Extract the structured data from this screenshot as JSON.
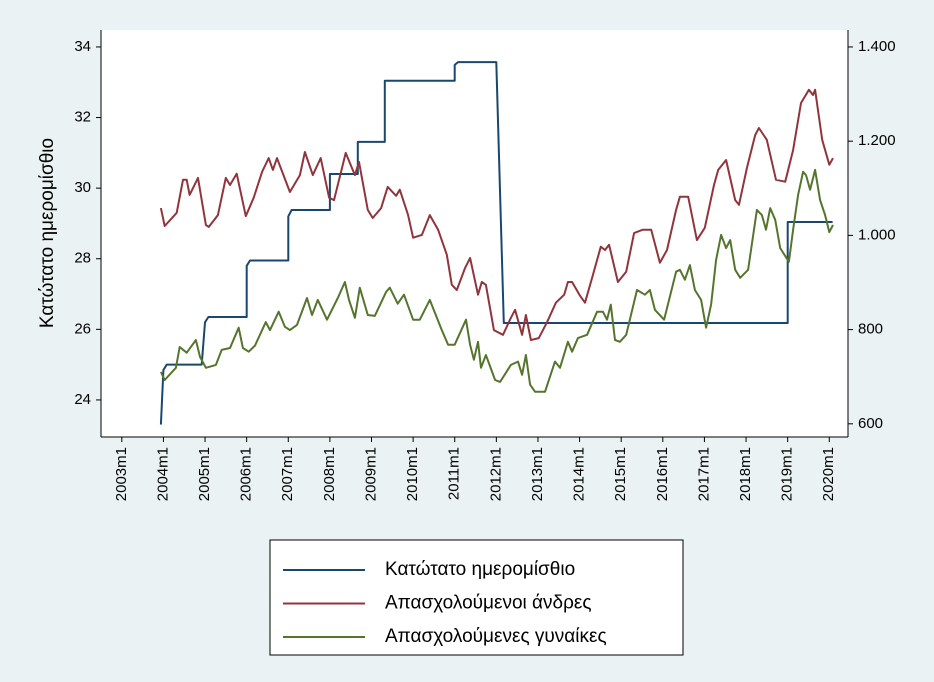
{
  "chart_data": {
    "type": "line",
    "ylabel": "Κατώτατο ημερομίσθιο",
    "xlim": [
      2002.5,
      2020.45
    ],
    "xticks": [
      {
        "value": 2003,
        "label": "2003m1"
      },
      {
        "value": 2004,
        "label": "2004m1"
      },
      {
        "value": 2005,
        "label": "2005m1"
      },
      {
        "value": 2006,
        "label": "2006m1"
      },
      {
        "value": 2007,
        "label": "2007m1"
      },
      {
        "value": 2008,
        "label": "2008m1"
      },
      {
        "value": 2009,
        "label": "2009m1"
      },
      {
        "value": 2010,
        "label": "2010m1"
      },
      {
        "value": 2011,
        "label": "2011m1"
      },
      {
        "value": 2012,
        "label": "2012m1"
      },
      {
        "value": 2013,
        "label": "2013m1"
      },
      {
        "value": 2014,
        "label": "2014m1"
      },
      {
        "value": 2015,
        "label": "2015m1"
      },
      {
        "value": 2016,
        "label": "2016m1"
      },
      {
        "value": 2017,
        "label": "2017m1"
      },
      {
        "value": 2018,
        "label": "2018m1"
      },
      {
        "value": 2019,
        "label": "2019m1"
      },
      {
        "value": 2020,
        "label": "2020m1"
      }
    ],
    "ylim": [
      22.95,
      34.48
    ],
    "yticks": [
      24,
      26,
      28,
      30,
      32,
      34
    ],
    "y2lim": [
      572,
      1436
    ],
    "y2ticks": [
      600,
      800,
      {
        "value": 1000,
        "label": "1.000"
      },
      {
        "value": 1200,
        "label": "1.200"
      },
      {
        "value": 1400,
        "label": "1.400"
      }
    ],
    "legend": "bottom",
    "series": [
      {
        "name": "Κατώτατο ημερομίσθιο",
        "color": "#1a476f",
        "x": [
          2003.94,
          2004.0,
          2004.08,
          2004.92,
          2005.0,
          2005.08,
          2006.0,
          2006.0,
          2006.08,
          2007.0,
          2007.0,
          2007.08,
          2008.0,
          2008.0,
          2008.67,
          2008.67,
          2009.32,
          2009.32,
          2011.0,
          2011.0,
          2011.08,
          2012.0,
          2012.18,
          2019.0,
          2019.0,
          2020.08
        ],
        "values": [
          23.3,
          24.85,
          25.0,
          25.0,
          26.2,
          26.35,
          26.35,
          27.8,
          27.95,
          27.95,
          29.2,
          29.38,
          29.38,
          30.4,
          30.4,
          31.31,
          31.31,
          33.04,
          33.04,
          33.49,
          33.57,
          33.57,
          26.18,
          26.18,
          29.04,
          29.04
        ]
      },
      {
        "name": "Απασχολούμενοι άνδρες",
        "color": "#90353b",
        "axis": "y2",
        "x": [
          2003.94,
          2004.03,
          2004.32,
          2004.47,
          2004.56,
          2004.63,
          2004.83,
          2005.02,
          2005.09,
          2005.31,
          2005.5,
          2005.6,
          2005.76,
          2005.98,
          2006.17,
          2006.37,
          2006.53,
          2006.63,
          2006.73,
          2007.04,
          2007.28,
          2007.4,
          2007.59,
          2007.78,
          2007.98,
          2008.1,
          2008.29,
          2008.38,
          2008.6,
          2008.7,
          2008.91,
          2009.03,
          2009.23,
          2009.39,
          2009.59,
          2009.68,
          2009.88,
          2010.0,
          2010.21,
          2010.4,
          2010.6,
          2010.81,
          2010.93,
          2011.05,
          2011.25,
          2011.37,
          2011.56,
          2011.65,
          2011.75,
          2011.94,
          2012.16,
          2012.35,
          2012.45,
          2012.62,
          2012.71,
          2012.83,
          2013.02,
          2013.22,
          2013.43,
          2013.63,
          2013.72,
          2013.82,
          2014.01,
          2014.13,
          2014.32,
          2014.51,
          2014.61,
          2014.71,
          2014.92,
          2015.12,
          2015.31,
          2015.52,
          2015.72,
          2015.93,
          2016.1,
          2016.32,
          2016.41,
          2016.61,
          2016.82,
          2017.01,
          2017.23,
          2017.33,
          2017.52,
          2017.74,
          2017.83,
          2018.02,
          2018.22,
          2018.31,
          2018.5,
          2018.72,
          2018.94,
          2019.13,
          2019.32,
          2019.51,
          2019.61,
          2019.66,
          2019.83,
          2020.0,
          2020.09
        ],
        "values": [
          1058,
          1020,
          1048,
          1118,
          1118,
          1086,
          1122,
          1022,
          1018,
          1043,
          1122,
          1107,
          1131,
          1041,
          1080,
          1135,
          1164,
          1139,
          1164,
          1092,
          1128,
          1177,
          1128,
          1164,
          1080,
          1075,
          1143,
          1175,
          1128,
          1156,
          1054,
          1037,
          1058,
          1103,
          1084,
          1097,
          1043,
          995,
          1001,
          1043,
          1012,
          959,
          895,
          884,
          931,
          952,
          874,
          901,
          895,
          799,
          789,
          825,
          842,
          789,
          831,
          778,
          782,
          816,
          857,
          874,
          901,
          901,
          872,
          857,
          916,
          976,
          969,
          980,
          901,
          923,
          1005,
          1012,
          1012,
          942,
          969,
          1054,
          1082,
          1082,
          990,
          1016,
          1107,
          1139,
          1160,
          1075,
          1065,
          1143,
          1213,
          1228,
          1203,
          1118,
          1114,
          1181,
          1281,
          1309,
          1298,
          1309,
          1203,
          1150,
          1164
        ]
      },
      {
        "name": "Απασχολούμενες γυναίκες",
        "color": "#55752f",
        "axis": "y2",
        "x": [
          2003.94,
          2004.03,
          2004.3,
          2004.39,
          2004.56,
          2004.78,
          2004.88,
          2005.02,
          2005.26,
          2005.4,
          2005.6,
          2005.81,
          2005.91,
          2006.05,
          2006.2,
          2006.46,
          2006.56,
          2006.77,
          2006.92,
          2007.04,
          2007.21,
          2007.45,
          2007.57,
          2007.71,
          2007.93,
          2008.19,
          2008.36,
          2008.46,
          2008.6,
          2008.72,
          2008.91,
          2009.08,
          2009.35,
          2009.44,
          2009.63,
          2009.78,
          2010.0,
          2010.16,
          2010.4,
          2010.69,
          2010.84,
          2011.0,
          2011.27,
          2011.37,
          2011.46,
          2011.56,
          2011.63,
          2011.75,
          2011.97,
          2012.09,
          2012.35,
          2012.52,
          2012.62,
          2012.71,
          2012.81,
          2012.93,
          2013.17,
          2013.41,
          2013.53,
          2013.72,
          2013.82,
          2013.96,
          2014.18,
          2014.42,
          2014.56,
          2014.66,
          2014.75,
          2014.85,
          2014.97,
          2015.12,
          2015.38,
          2015.57,
          2015.69,
          2015.81,
          2016.03,
          2016.32,
          2016.41,
          2016.53,
          2016.65,
          2016.77,
          2016.92,
          2017.04,
          2017.16,
          2017.28,
          2017.4,
          2017.52,
          2017.62,
          2017.74,
          2017.86,
          2018.05,
          2018.26,
          2018.38,
          2018.48,
          2018.58,
          2018.7,
          2018.82,
          2019.03,
          2019.13,
          2019.25,
          2019.37,
          2019.44,
          2019.54,
          2019.66,
          2019.78,
          2019.9,
          2020.0,
          2020.09
        ],
        "values": [
          710,
          693,
          719,
          763,
          751,
          778,
          742,
          719,
          725,
          757,
          761,
          804,
          761,
          753,
          766,
          816,
          799,
          838,
          806,
          799,
          810,
          867,
          831,
          863,
          821,
          867,
          901,
          863,
          825,
          889,
          831,
          829,
          880,
          889,
          855,
          874,
          821,
          821,
          863,
          799,
          768,
          768,
          821,
          768,
          736,
          774,
          719,
          746,
          693,
          689,
          725,
          732,
          704,
          746,
          683,
          668,
          668,
          732,
          719,
          774,
          753,
          782,
          789,
          838,
          838,
          821,
          853,
          778,
          774,
          789,
          884,
          874,
          884,
          842,
          821,
          923,
          927,
          906,
          937,
          884,
          863,
          804,
          853,
          948,
          1001,
          973,
          990,
          927,
          910,
          927,
          1054,
          1043,
          1012,
          1058,
          1033,
          973,
          944,
          1012,
          1086,
          1135,
          1128,
          1097,
          1139,
          1075,
          1043,
          1007,
          1022
        ]
      }
    ]
  }
}
